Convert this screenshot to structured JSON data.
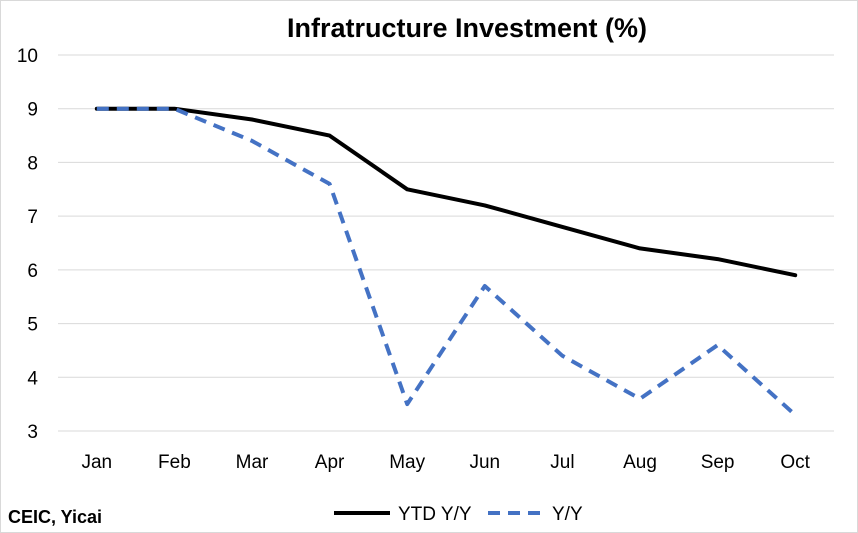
{
  "chart_data": {
    "type": "line",
    "title": "Infratructure Investment (%)",
    "categories": [
      "Jan",
      "Feb",
      "Mar",
      "Apr",
      "May",
      "Jun",
      "Jul",
      "Aug",
      "Sep",
      "Oct"
    ],
    "series": [
      {
        "name": "YTD Y/Y",
        "values": [
          9.0,
          9.0,
          8.8,
          8.5,
          7.5,
          7.2,
          6.8,
          6.4,
          6.2,
          5.9
        ],
        "color": "#000000",
        "style": "solid"
      },
      {
        "name": "Y/Y",
        "values": [
          9.0,
          9.0,
          8.4,
          7.6,
          3.5,
          5.7,
          4.4,
          3.6,
          4.6,
          3.3
        ],
        "color": "#4472c4",
        "style": "dashed"
      }
    ],
    "yticks": [
      3,
      4,
      5,
      6,
      7,
      8,
      9,
      10
    ],
    "ylim": [
      3,
      10
    ],
    "grid": true,
    "legend": "bottom",
    "source": "CEIC, Yicai"
  }
}
